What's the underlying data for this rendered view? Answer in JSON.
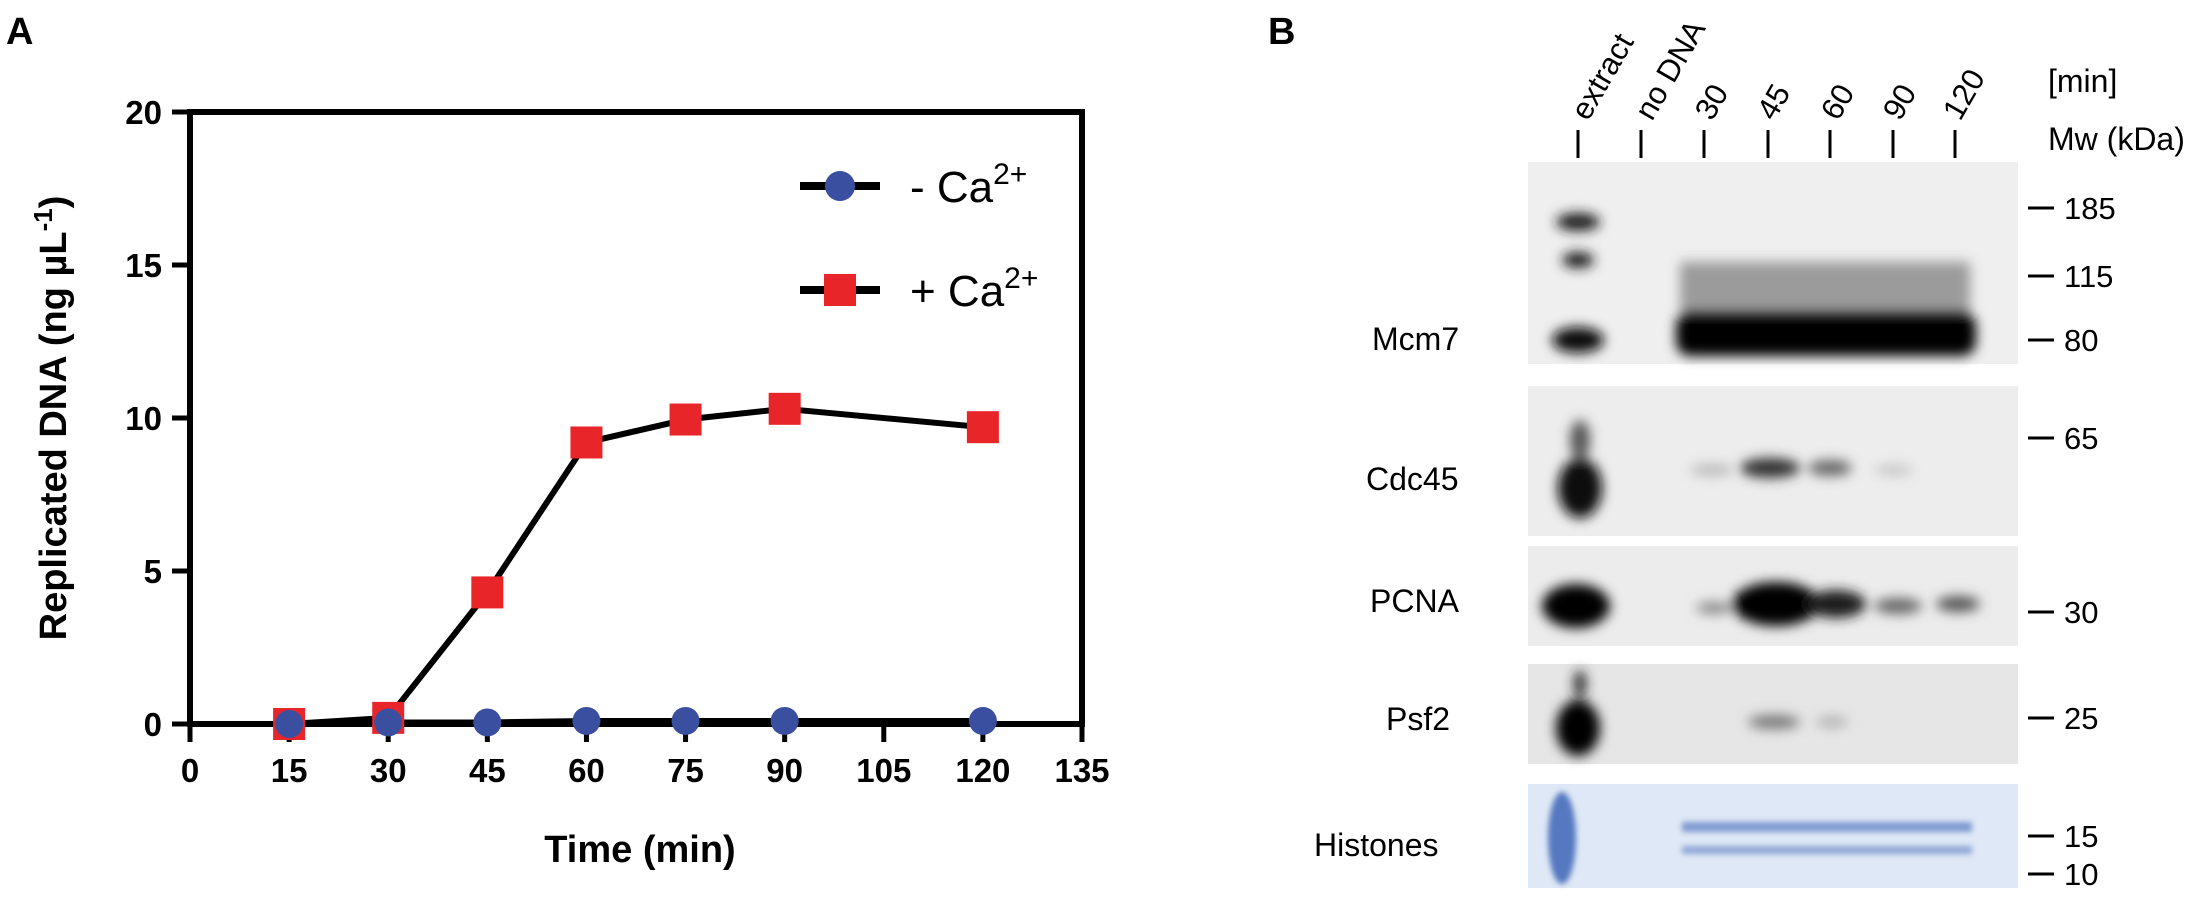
{
  "panel_a": {
    "letter": "A",
    "chart_data": {
      "type": "line",
      "title": "",
      "xlabel": "Time (min)",
      "ylabel": "Replicated DNA (ng µL",
      "ylabel_sup": "-1",
      "ylabel_close": ")",
      "xlim": [
        0,
        135
      ],
      "ylim": [
        0,
        20
      ],
      "xticks": [
        "0",
        "15",
        "30",
        "45",
        "60",
        "75",
        "90",
        "105",
        "120",
        "135"
      ],
      "yticks": [
        "0",
        "5",
        "10",
        "15",
        "20"
      ],
      "x": [
        15,
        30,
        45,
        60,
        75,
        90,
        120
      ],
      "grid": false,
      "legend_position": "top-right",
      "series": [
        {
          "name": "- Ca",
          "sup": "2+",
          "marker": "circle",
          "color": "#3a4fa0",
          "values": [
            0.0,
            0.05,
            0.05,
            0.1,
            0.1,
            0.1,
            0.1
          ]
        },
        {
          "name": "+ Ca",
          "sup": "2+",
          "marker": "square",
          "color": "#e8262a",
          "values": [
            0.0,
            0.2,
            4.3,
            9.2,
            9.95,
            10.3,
            9.7
          ]
        }
      ]
    }
  },
  "panel_b": {
    "letter": "B",
    "lanes": [
      "extract",
      "no DNA",
      "30",
      "45",
      "60",
      "90",
      "120"
    ],
    "unit_label": "[min]",
    "mw_header": "Mw (kDa)",
    "blots": [
      {
        "name": "Mcm7",
        "markers": [
          "185",
          "115",
          "80"
        ]
      },
      {
        "name": "Cdc45",
        "markers": [
          "65"
        ]
      },
      {
        "name": "PCNA",
        "markers": [
          "30"
        ]
      },
      {
        "name": "Psf2",
        "markers": [
          "25"
        ]
      },
      {
        "name": "Histones",
        "markers": [
          "15",
          "10"
        ]
      }
    ]
  }
}
